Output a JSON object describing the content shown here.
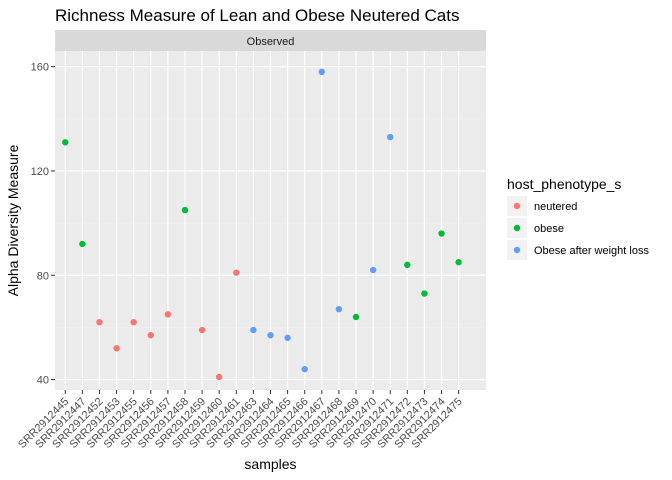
{
  "chart_data": {
    "type": "scatter",
    "title": "Richness Measure of Lean and Obese Neutered Cats",
    "facet_label": "Observed",
    "xlabel": "samples",
    "ylabel": "Alpha Diversity Measure",
    "ylim": [
      36,
      166
    ],
    "y_ticks": [
      40,
      80,
      120,
      160
    ],
    "grid": true,
    "legend": {
      "title": "host_phenotype_s",
      "placement": "right",
      "entries": [
        {
          "name": "neutered",
          "color": "#F8766D"
        },
        {
          "name": "obese",
          "color": "#00BA38"
        },
        {
          "name": "Obese after weight loss",
          "color": "#619CFF"
        }
      ]
    },
    "categories": [
      "SRR2912445",
      "SRR2912447",
      "SRR2912452",
      "SRR2912453",
      "SRR2912455",
      "SRR2912456",
      "SRR2912457",
      "SRR2912458",
      "SRR2912459",
      "SRR2912460",
      "SRR2912461",
      "SRR2912463",
      "SRR2912464",
      "SRR2912465",
      "SRR2912466",
      "SRR2912467",
      "SRR2912468",
      "SRR2912469",
      "SRR2912470",
      "SRR2912471",
      "SRR2912472",
      "SRR2912473",
      "SRR2912474",
      "SRR2912475"
    ],
    "points": [
      {
        "sample": "SRR2912445",
        "value": 131,
        "group": "obese"
      },
      {
        "sample": "SRR2912447",
        "value": 92,
        "group": "obese"
      },
      {
        "sample": "SRR2912452",
        "value": 62,
        "group": "neutered"
      },
      {
        "sample": "SRR2912453",
        "value": 52,
        "group": "neutered"
      },
      {
        "sample": "SRR2912455",
        "value": 62,
        "group": "neutered"
      },
      {
        "sample": "SRR2912456",
        "value": 57,
        "group": "neutered"
      },
      {
        "sample": "SRR2912457",
        "value": 65,
        "group": "neutered"
      },
      {
        "sample": "SRR2912458",
        "value": 105,
        "group": "obese"
      },
      {
        "sample": "SRR2912459",
        "value": 59,
        "group": "neutered"
      },
      {
        "sample": "SRR2912460",
        "value": 41,
        "group": "neutered"
      },
      {
        "sample": "SRR2912461",
        "value": 81,
        "group": "neutered"
      },
      {
        "sample": "SRR2912463",
        "value": 59,
        "group": "Obese after weight loss"
      },
      {
        "sample": "SRR2912464",
        "value": 57,
        "group": "Obese after weight loss"
      },
      {
        "sample": "SRR2912465",
        "value": 56,
        "group": "Obese after weight loss"
      },
      {
        "sample": "SRR2912466",
        "value": 44,
        "group": "Obese after weight loss"
      },
      {
        "sample": "SRR2912467",
        "value": 158,
        "group": "Obese after weight loss"
      },
      {
        "sample": "SRR2912468",
        "value": 67,
        "group": "Obese after weight loss"
      },
      {
        "sample": "SRR2912469",
        "value": 64,
        "group": "obese"
      },
      {
        "sample": "SRR2912470",
        "value": 82,
        "group": "Obese after weight loss"
      },
      {
        "sample": "SRR2912471",
        "value": 133,
        "group": "Obese after weight loss"
      },
      {
        "sample": "SRR2912472",
        "value": 84,
        "group": "obese"
      },
      {
        "sample": "SRR2912473",
        "value": 73,
        "group": "obese"
      },
      {
        "sample": "SRR2912474",
        "value": 96,
        "group": "obese"
      },
      {
        "sample": "SRR2912475",
        "value": 85,
        "group": "obese"
      }
    ]
  }
}
